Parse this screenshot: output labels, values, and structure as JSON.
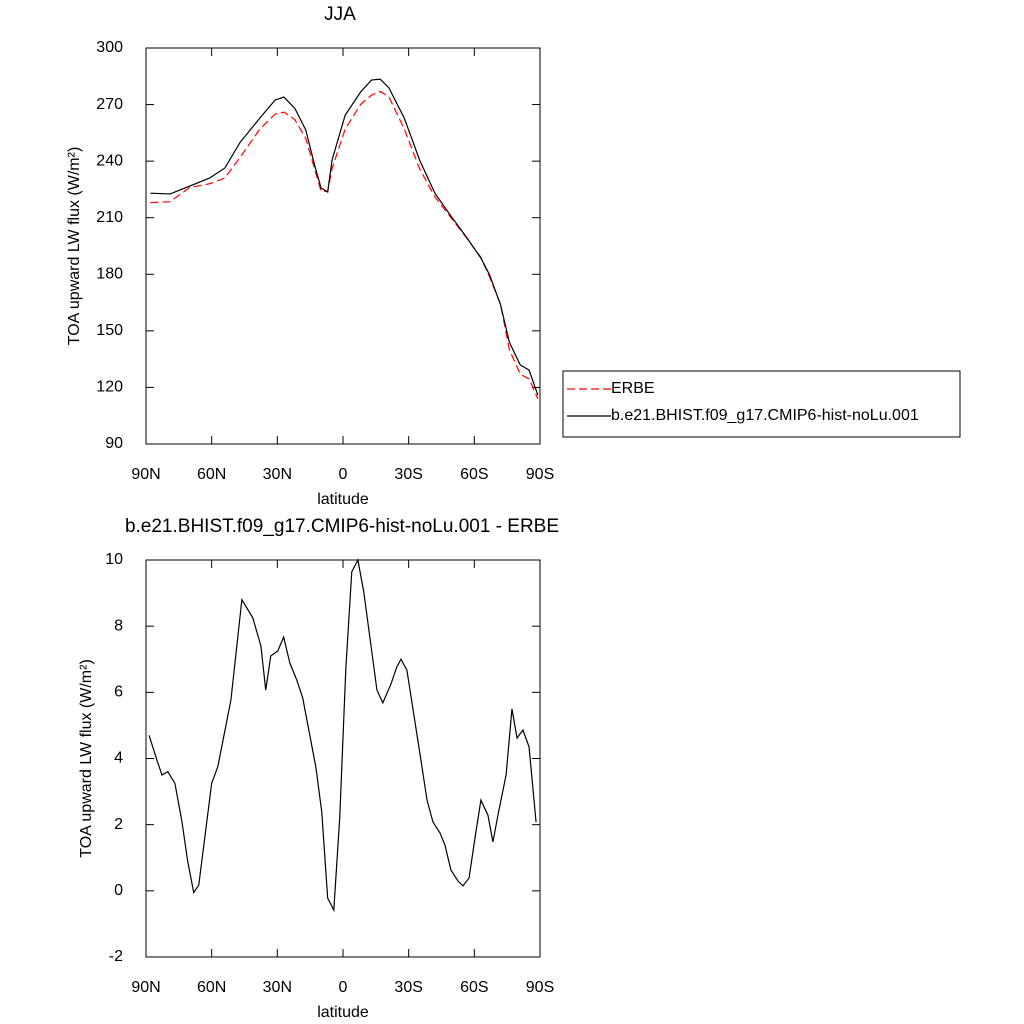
{
  "chart_data": [
    {
      "type": "line",
      "title": "JJA",
      "x_label": "latitude",
      "y_label": "TOA upward LW flux (W/m²)",
      "x": [
        88,
        79,
        70,
        61,
        54,
        47,
        38,
        31,
        27,
        22,
        17,
        13,
        10,
        7,
        5,
        -1,
        -8,
        -13,
        -17,
        -21,
        -28,
        -35,
        -42,
        -49,
        -56,
        -63,
        -67,
        -72,
        -76,
        -81,
        -85,
        -89
      ],
      "series": [
        {
          "name": "ERBE",
          "color": "#ff0000",
          "line_style": "dashed",
          "values": [
            218,
            218.5,
            226,
            228,
            231,
            242,
            257,
            265,
            266,
            262,
            252,
            236,
            224,
            224,
            236,
            257,
            270,
            275,
            277,
            274,
            257,
            236,
            221,
            210.5,
            200,
            189,
            178.5,
            164,
            140,
            127,
            124.5,
            114
          ]
        },
        {
          "name": "b.e21.BHIST.f09_g17.CMIP6-hist-noLu.001",
          "color": "#000000",
          "line_style": "solid",
          "values": [
            223,
            222.6,
            226.8,
            231,
            236.3,
            250,
            262.8,
            272.4,
            274,
            268,
            256.5,
            238,
            225.7,
            223.6,
            240.6,
            264.4,
            276.6,
            283,
            283.5,
            278.8,
            262.8,
            240.6,
            223,
            211.4,
            200.3,
            188.6,
            179.6,
            163.7,
            144,
            131.9,
            129.2,
            116
          ]
        }
      ],
      "xlim": [
        90,
        -90
      ],
      "ylim": [
        90,
        300
      ],
      "xticks": [
        {
          "value": 90,
          "label": "90N"
        },
        {
          "value": 60,
          "label": "60N"
        },
        {
          "value": 30,
          "label": "30N"
        },
        0,
        {
          "value": -30,
          "label": "30S"
        },
        {
          "value": -60,
          "label": "60S"
        },
        {
          "value": -90,
          "label": "90S"
        }
      ],
      "yticks": [
        90,
        120,
        150,
        180,
        210,
        240,
        270,
        300
      ],
      "legend": "right"
    },
    {
      "type": "line",
      "title": "b.e21.BHIST.f09_g17.CMIP6-hist-noLu.001 - ERBE",
      "x_label": "latitude",
      "y_label": "TOA upward LW flux (W/m²)",
      "x": [
        88.6,
        85,
        82.7,
        80,
        76.8,
        73.6,
        70.9,
        68.2,
        65.9,
        60,
        57.2,
        51.2,
        46.2,
        41.2,
        37.5,
        35.3,
        33,
        29.8,
        27.1,
        24.3,
        21.1,
        18.4,
        12.4,
        9.7,
        7,
        4.2,
        1.5,
        -1.3,
        -4,
        -6.8,
        -9.5,
        -15.5,
        -18.2,
        -21.9,
        -24.6,
        -26.5,
        -29.2,
        -35.6,
        -38.4,
        -41.1,
        -44.3,
        -46.6,
        -49.3,
        -52.5,
        -54.8,
        -57.6,
        -60.3,
        -63,
        -66.2,
        -68.5,
        -70.8,
        -74.5,
        -77.2,
        -79.5,
        -82.2,
        -85,
        -88.2
      ],
      "series": [
        {
          "color": "#000000",
          "line_style": "solid",
          "values": [
            4.7,
            3.95,
            3.5,
            3.6,
            3.25,
            2.1,
            0.87,
            -0.05,
            0.17,
            3.25,
            3.75,
            5.77,
            8.8,
            8.25,
            7.4,
            6.07,
            7.1,
            7.25,
            7.67,
            6.89,
            6.37,
            5.83,
            3.74,
            2.38,
            -0.22,
            -0.58,
            2.2,
            6.73,
            9.64,
            10,
            9.03,
            6.07,
            5.68,
            6.25,
            6.77,
            7,
            6.67,
            3.95,
            2.74,
            2.08,
            1.75,
            1.38,
            0.63,
            0.3,
            0.15,
            0.39,
            1.6,
            2.74,
            2.29,
            1.48,
            2.29,
            3.5,
            5.5,
            4.62,
            4.86,
            4.35,
            2.08
          ]
        }
      ],
      "xlim": [
        90,
        -90
      ],
      "ylim": [
        -2,
        10
      ],
      "xticks": [
        {
          "value": 90,
          "label": "90N"
        },
        {
          "value": 60,
          "label": "60N"
        },
        {
          "value": 30,
          "label": "30N"
        },
        0,
        {
          "value": -30,
          "label": "30S"
        },
        {
          "value": -60,
          "label": "60S"
        },
        {
          "value": -90,
          "label": "90S"
        }
      ],
      "yticks": [
        -2,
        0,
        2,
        4,
        6,
        8,
        10
      ]
    }
  ]
}
